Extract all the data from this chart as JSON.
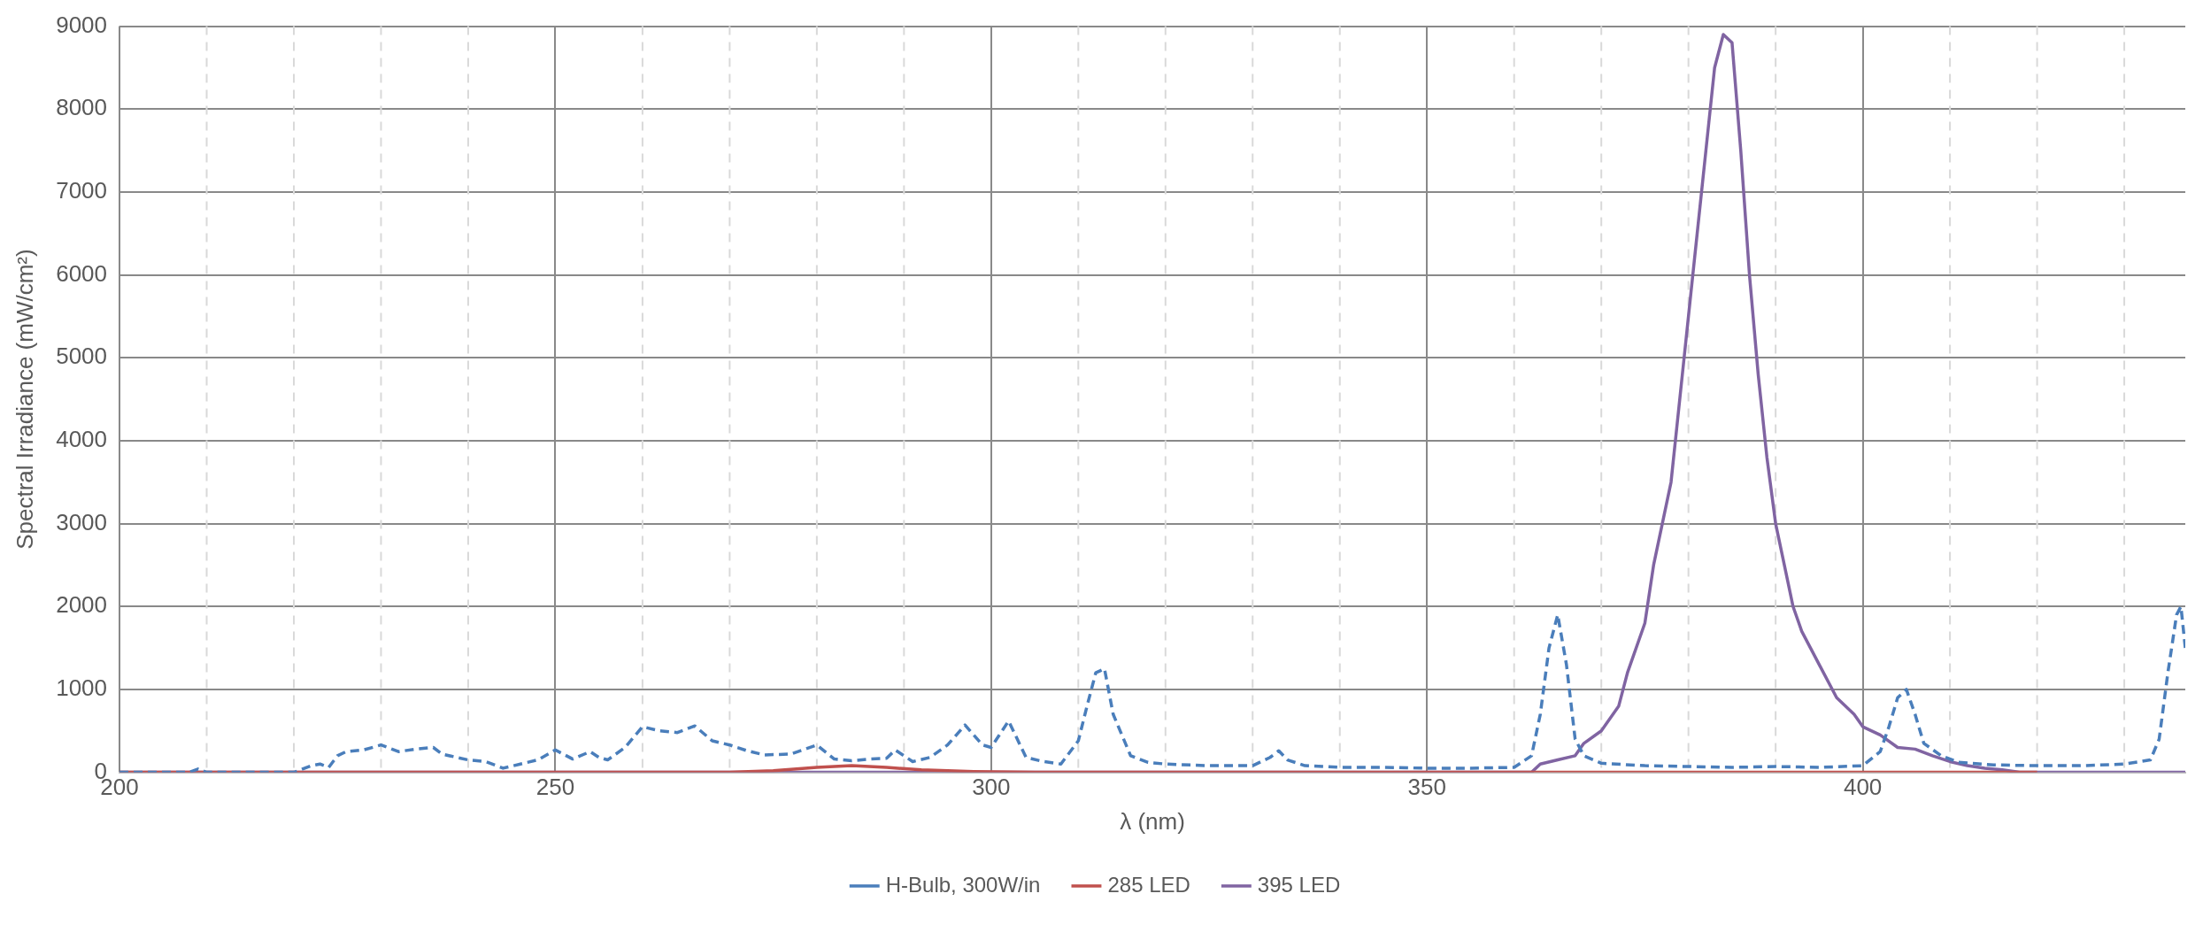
{
  "chart_data": {
    "type": "line",
    "xlabel": "λ (nm)",
    "ylabel": "Spectral Irradiance (mW/cm²)",
    "xlim": [
      200,
      437
    ],
    "ylim": [
      0,
      9000
    ],
    "xticks": [
      200,
      {
        "value": 210,
        "label": null
      },
      {
        "value": 220,
        "label": null
      },
      {
        "value": 230,
        "label": null
      },
      {
        "value": 240,
        "label": null
      },
      250,
      {
        "value": 260,
        "label": null
      },
      {
        "value": 270,
        "label": null
      },
      {
        "value": 280,
        "label": null
      },
      {
        "value": 290,
        "label": null
      },
      300,
      {
        "value": 310,
        "label": null
      },
      {
        "value": 320,
        "label": null
      },
      {
        "value": 330,
        "label": null
      },
      {
        "value": 340,
        "label": null
      },
      350,
      {
        "value": 360,
        "label": null
      },
      {
        "value": 370,
        "label": null
      },
      {
        "value": 380,
        "label": null
      },
      {
        "value": 390,
        "label": null
      },
      400,
      {
        "value": 410,
        "label": null
      },
      {
        "value": 420,
        "label": null
      },
      {
        "value": 430,
        "label": null
      }
    ],
    "yticks": [
      0,
      1000,
      2000,
      3000,
      4000,
      5000,
      6000,
      7000,
      8000,
      9000
    ],
    "grid": true,
    "legend": "bottom",
    "marker": "none",
    "series": [
      {
        "name": "H-Bulb, 300W/in",
        "color": "#4a7ebb",
        "line_style": "dashed",
        "x": [
          200,
          208,
          209,
          210,
          220,
          222,
          223,
          224,
          225,
          226,
          228,
          230,
          232,
          234,
          236,
          237,
          240,
          242,
          244,
          246,
          248,
          250,
          252,
          254,
          255,
          256,
          258,
          260,
          262,
          264,
          266,
          268,
          270,
          272,
          274,
          277,
          280,
          282,
          284,
          286,
          288,
          289,
          291,
          293,
          295,
          297,
          299,
          300,
          302,
          304,
          306,
          308,
          310,
          311,
          312,
          313,
          314,
          316,
          318,
          320,
          325,
          330,
          332,
          333,
          334,
          336,
          340,
          345,
          350,
          355,
          360,
          362,
          363,
          364,
          365,
          366,
          367,
          368,
          370,
          375,
          380,
          385,
          390,
          395,
          400,
          402,
          403,
          404,
          405,
          406,
          407,
          409,
          411,
          415,
          420,
          425,
          430,
          433,
          434,
          435,
          436,
          436.5,
          437
        ],
        "values": [
          0,
          0,
          40,
          0,
          0,
          80,
          100,
          60,
          200,
          250,
          270,
          330,
          250,
          280,
          300,
          220,
          150,
          130,
          50,
          100,
          150,
          270,
          160,
          250,
          180,
          150,
          300,
          550,
          500,
          480,
          560,
          380,
          330,
          260,
          210,
          220,
          330,
          160,
          140,
          160,
          170,
          270,
          130,
          180,
          330,
          570,
          330,
          300,
          620,
          180,
          130,
          100,
          380,
          800,
          1200,
          1250,
          700,
          200,
          120,
          100,
          80,
          80,
          180,
          260,
          150,
          80,
          60,
          60,
          50,
          50,
          60,
          200,
          700,
          1500,
          1900,
          1300,
          400,
          200,
          110,
          80,
          70,
          60,
          70,
          60,
          80,
          250,
          550,
          900,
          1000,
          700,
          350,
          200,
          120,
          90,
          80,
          80,
          100,
          150,
          400,
          1200,
          1900,
          2000,
          1500
        ]
      },
      {
        "name": "285 LED",
        "color": "#c0504d",
        "line_style": "solid",
        "x": [
          200,
          270,
          275,
          280,
          284,
          288,
          292,
          298,
          305,
          420
        ],
        "values": [
          0,
          0,
          20,
          60,
          80,
          60,
          30,
          10,
          0,
          0
        ]
      },
      {
        "name": "395 LED",
        "color": "#8064a2",
        "line_style": "solid",
        "x": [
          200,
          362,
          363,
          365,
          367,
          368,
          370,
          372,
          373,
          375,
          376,
          378,
          379,
          380,
          381,
          382,
          383,
          384,
          385,
          386,
          387,
          388,
          389,
          390,
          391,
          392,
          393,
          395,
          397,
          399,
          400,
          402,
          404,
          406,
          408,
          410,
          412,
          414,
          416,
          418,
          437
        ],
        "values": [
          0,
          0,
          100,
          150,
          200,
          350,
          500,
          800,
          1200,
          1800,
          2500,
          3500,
          4500,
          5500,
          6500,
          7500,
          8500,
          8900,
          8800,
          7500,
          6000,
          4800,
          3800,
          3000,
          2500,
          2000,
          1700,
          1300,
          900,
          700,
          550,
          450,
          300,
          280,
          200,
          130,
          80,
          50,
          30,
          0,
          0
        ]
      }
    ]
  }
}
